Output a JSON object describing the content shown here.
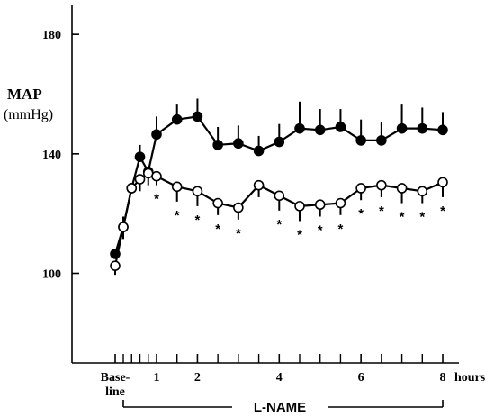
{
  "chart_data": {
    "type": "line",
    "ylabel": "MAP",
    "yunit": "(mmHg)",
    "ylim": [
      70,
      190
    ],
    "yticks": [
      100,
      140,
      180
    ],
    "xlim": [
      -0.65,
      8.5
    ],
    "xticks": [
      {
        "value": -0.5,
        "label": "Base-\nline"
      },
      {
        "value": 1,
        "label": "1"
      },
      {
        "value": 2,
        "label": "2"
      },
      {
        "value": 4,
        "label": "4"
      },
      {
        "value": 6,
        "label": "6"
      },
      {
        "value": 8,
        "label": "8"
      }
    ],
    "minor_xticks": [
      0,
      0.25,
      0.5,
      0.75,
      1.5,
      2.5,
      3,
      3.5,
      4.5,
      5,
      5.5,
      6.5,
      7,
      7.5
    ],
    "xunit": "hours",
    "bracket_label": "L-NAME",
    "grid": false,
    "legend": "none",
    "series": [
      {
        "marker": "filled-circle",
        "color": "#000000",
        "x": [
          -0.5,
          0,
          0.25,
          0.5,
          0.75,
          1,
          1.5,
          2,
          2.5,
          3,
          3.5,
          4,
          4.5,
          5,
          5.5,
          6,
          6.5,
          7,
          7.5,
          8
        ],
        "y": [
          106.5,
          115.5,
          128.5,
          139,
          134,
          146.5,
          151.5,
          152.5,
          143,
          143.5,
          141,
          144,
          148.5,
          148,
          149,
          144.5,
          144.5,
          148.5,
          148.5,
          148
        ],
        "error": [
          0,
          3.5,
          0,
          4,
          0,
          6,
          5,
          6,
          6,
          6,
          5,
          6,
          9,
          7,
          6,
          7,
          6,
          8,
          7,
          6
        ],
        "error_dir": "up"
      },
      {
        "marker": "open-circle",
        "color": "#000000",
        "x": [
          -0.5,
          0,
          0.25,
          0.5,
          0.75,
          1,
          1.5,
          2,
          2.5,
          3,
          3.5,
          4,
          4.5,
          5,
          5.5,
          6,
          6.5,
          7,
          7.5,
          8
        ],
        "y": [
          102.5,
          115.5,
          128.5,
          131.5,
          133.5,
          132.5,
          129,
          127.5,
          123.5,
          122,
          129.5,
          126,
          122.5,
          123,
          123.5,
          128.5,
          129.5,
          128.5,
          127.5,
          130.5
        ],
        "error": [
          3,
          4,
          0,
          4,
          4,
          3,
          5,
          5,
          4,
          4,
          4,
          5,
          5,
          4,
          4,
          4,
          4,
          5,
          4,
          5
        ],
        "error_dir": "down",
        "significant_x": [
          1,
          1.5,
          2,
          2.5,
          3,
          4,
          4.5,
          5,
          5.5,
          6,
          6.5,
          7,
          7.5,
          8
        ],
        "significance_mark": "*"
      }
    ]
  }
}
